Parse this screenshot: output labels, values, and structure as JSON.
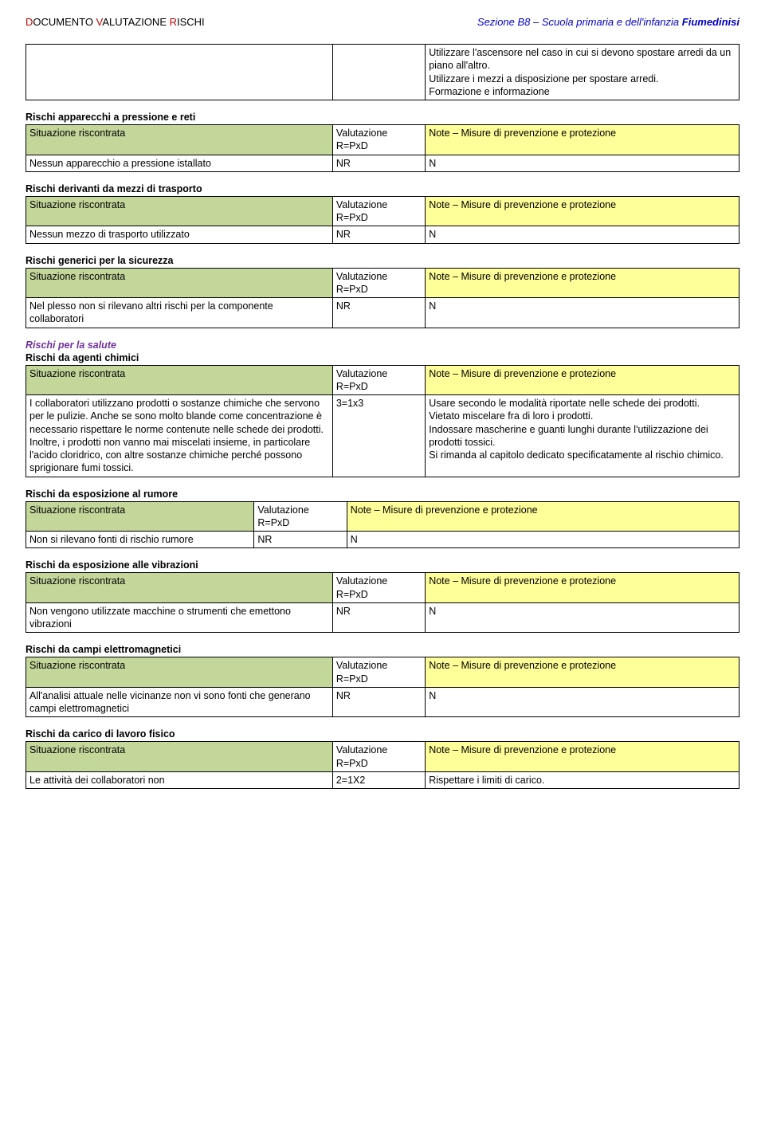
{
  "header": {
    "left_html": "<span class=\"red\">D</span>OCUMENTO <span class=\"red\">V</span>ALUTAZIONE <span class=\"red\">R</span>ISCHI",
    "right_html": "Sezione B8 – Scuola primaria e dell'infanzia <span class=\"bold\">Fiumedinisi</span>"
  },
  "labels": {
    "sit": "Situazione riscontrata",
    "val": "Valutazione R=PxD",
    "note": "Note – Misure di prevenzione e protezione",
    "note_long": "Note – Misure di prevenzione e protezione"
  },
  "top_note": "Utilizzare l'ascensore nel caso in cui si devono spostare arredi da un piano all'altro.\nUtilizzare i mezzi a disposizione per spostare arredi.\nFormazione e informazione",
  "sections": [
    {
      "title": "Rischi apparecchi a pressione e reti",
      "rows": [
        {
          "sit": "Nessun apparecchio a pressione istallato",
          "val": "NR",
          "note": "N"
        }
      ]
    },
    {
      "title": "Rischi derivanti da mezzi di trasporto",
      "rows": [
        {
          "sit": "Nessun mezzo di trasporto utilizzato",
          "val": "NR",
          "note": "N"
        }
      ]
    },
    {
      "title": "Rischi generici per la sicurezza",
      "rows": [
        {
          "sit": "Nel plesso non si rilevano altri rischi per la componente collaboratori",
          "val": "NR",
          "note": "N"
        }
      ]
    },
    {
      "pre_title": "Rischi per la salute",
      "title": "Rischi da agenti chimici",
      "rows": [
        {
          "sit": "I collaboratori utilizzano prodotti o sostanze chimiche che servono per le pulizie. Anche se sono molto blande come concentrazione è necessario rispettare le norme contenute nelle schede dei prodotti. Inoltre, i prodotti non vanno mai miscelati insieme, in particolare l'acido cloridrico, con altre sostanze chimiche perché possono sprigionare fumi tossici.",
          "val": "3=1x3",
          "note": "Usare secondo le modalità riportate nelle schede dei prodotti.\nVietato miscelare fra di loro i prodotti.\nIndossare mascherine e guanti lunghi durante l'utilizzazione dei prodotti tossici.\nSi rimanda al capitolo dedicato specificatamente al rischio chimico."
        }
      ]
    },
    {
      "title": "Rischi da esposizione al rumore",
      "narrow_sit": true,
      "rows": [
        {
          "sit": "Non si rilevano fonti di rischio rumore",
          "val": "NR",
          "note": "N"
        }
      ]
    },
    {
      "title": "Rischi da esposizione alle vibrazioni",
      "rows": [
        {
          "sit": "Non vengono utilizzate macchine o strumenti che emettono vibrazioni",
          "val": "NR",
          "note": "N"
        }
      ]
    },
    {
      "title": "Rischi da campi elettromagnetici",
      "rows": [
        {
          "sit": "All'analisi attuale nelle vicinanze non vi sono fonti che generano campi elettromagnetici",
          "val": "NR",
          "note": "N"
        }
      ]
    },
    {
      "title": "Rischi da carico di lavoro fisico",
      "rows": [
        {
          "sit": "Le attività dei collaboratori non",
          "val": "2=1X2",
          "note": "Rispettare i limiti di carico."
        }
      ]
    }
  ],
  "colors": {
    "green": "#c4d79b",
    "yellow": "#ffff99",
    "red": "#c00000",
    "blue": "#0000cc",
    "purple": "#7030a0",
    "border": "#000000",
    "bg": "#ffffff"
  }
}
